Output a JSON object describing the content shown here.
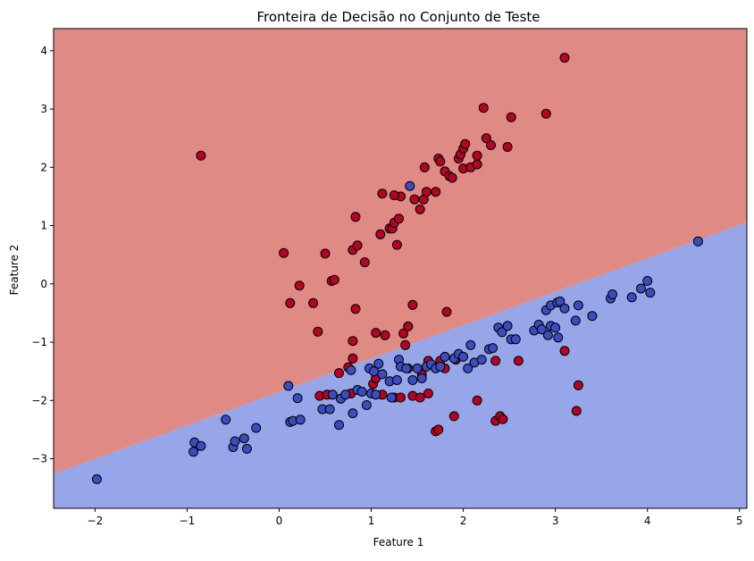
{
  "chart_data": {
    "type": "scatter",
    "title": "Fronteira de Decisão no Conjunto de Teste",
    "xlabel": "Feature 1",
    "ylabel": "Feature 2",
    "xlim": [
      -2.45,
      5.08
    ],
    "ylim": [
      -3.85,
      4.38
    ],
    "xticks": [
      -2,
      -1,
      0,
      1,
      2,
      3,
      4,
      5
    ],
    "yticks": [
      -3,
      -2,
      -1,
      0,
      1,
      2,
      3,
      4
    ],
    "xtick_labels": [
      "−2",
      "−1",
      "0",
      "1",
      "2",
      "3",
      "4",
      "5"
    ],
    "ytick_labels": [
      "−3",
      "−2",
      "−1",
      "0",
      "1",
      "2",
      "3",
      "4"
    ],
    "grid": false,
    "legend": "none",
    "decision_boundary": {
      "x": [
        -2.45,
        5.08
      ],
      "y": [
        -3.26,
        1.06
      ],
      "region_above_color": "#e08a85",
      "region_below_color": "#97a6e8"
    },
    "series": [
      {
        "color": "#b40426",
        "points": [
          [
            -0.85,
            2.2
          ],
          [
            0.05,
            0.53
          ],
          [
            0.12,
            -0.33
          ],
          [
            0.22,
            -0.03
          ],
          [
            0.37,
            -0.33
          ],
          [
            0.42,
            -0.82
          ],
          [
            0.5,
            0.52
          ],
          [
            0.57,
            0.05
          ],
          [
            0.6,
            0.07
          ],
          [
            0.8,
            0.58
          ],
          [
            0.83,
            1.15
          ],
          [
            0.85,
            0.66
          ],
          [
            0.93,
            0.37
          ],
          [
            0.83,
            -0.43
          ],
          [
            0.8,
            -0.98
          ],
          [
            1.05,
            -0.84
          ],
          [
            1.1,
            0.85
          ],
          [
            1.12,
            1.55
          ],
          [
            1.15,
            -0.88
          ],
          [
            1.2,
            0.95
          ],
          [
            1.23,
            0.95
          ],
          [
            1.25,
            1.05
          ],
          [
            1.28,
            0.67
          ],
          [
            1.3,
            1.12
          ],
          [
            1.32,
            1.5
          ],
          [
            1.25,
            1.52
          ],
          [
            1.35,
            -0.85
          ],
          [
            1.4,
            -0.73
          ],
          [
            1.45,
            -0.36
          ],
          [
            1.47,
            1.45
          ],
          [
            1.53,
            1.28
          ],
          [
            1.57,
            1.45
          ],
          [
            1.6,
            1.58
          ],
          [
            1.58,
            2.0
          ],
          [
            1.7,
            1.58
          ],
          [
            1.73,
            2.15
          ],
          [
            1.75,
            2.1
          ],
          [
            1.8,
            1.93
          ],
          [
            1.85,
            1.85
          ],
          [
            1.88,
            1.82
          ],
          [
            1.95,
            2.15
          ],
          [
            1.97,
            2.22
          ],
          [
            2.0,
            2.32
          ],
          [
            2.02,
            2.4
          ],
          [
            2.0,
            1.98
          ],
          [
            2.08,
            2.0
          ],
          [
            2.15,
            2.05
          ],
          [
            2.15,
            2.2
          ],
          [
            2.22,
            3.02
          ],
          [
            2.25,
            2.5
          ],
          [
            2.3,
            2.38
          ],
          [
            2.48,
            2.35
          ],
          [
            2.52,
            2.86
          ],
          [
            2.9,
            2.92
          ],
          [
            3.1,
            3.88
          ],
          [
            1.82,
            -0.48
          ],
          [
            1.37,
            -1.05
          ],
          [
            0.8,
            -1.28
          ],
          [
            0.75,
            -1.43
          ],
          [
            0.65,
            -1.53
          ],
          [
            0.44,
            -1.92
          ],
          [
            0.52,
            -1.9
          ],
          [
            0.78,
            -1.88
          ],
          [
            1.02,
            -1.72
          ],
          [
            1.05,
            -1.62
          ],
          [
            1.12,
            -1.9
          ],
          [
            1.25,
            -1.95
          ],
          [
            1.32,
            -1.95
          ],
          [
            1.45,
            -1.92
          ],
          [
            1.53,
            -1.95
          ],
          [
            1.62,
            -1.88
          ],
          [
            1.4,
            -1.45
          ],
          [
            1.55,
            -1.55
          ],
          [
            1.62,
            -1.32
          ],
          [
            1.75,
            -1.32
          ],
          [
            1.8,
            -1.45
          ],
          [
            1.92,
            -1.3
          ],
          [
            2.35,
            -1.32
          ],
          [
            2.6,
            -1.32
          ],
          [
            1.9,
            -2.27
          ],
          [
            1.7,
            -2.53
          ],
          [
            1.73,
            -2.5
          ],
          [
            2.15,
            -2.0
          ],
          [
            2.35,
            -2.35
          ],
          [
            2.4,
            -2.27
          ],
          [
            2.43,
            -2.32
          ],
          [
            3.1,
            -1.15
          ],
          [
            3.25,
            -1.74
          ],
          [
            3.23,
            -2.18
          ]
        ]
      },
      {
        "color": "#3b4cc0",
        "points": [
          [
            -1.98,
            -3.35
          ],
          [
            -0.92,
            -2.72
          ],
          [
            -0.93,
            -2.88
          ],
          [
            -0.85,
            -2.78
          ],
          [
            -0.58,
            -2.33
          ],
          [
            -0.5,
            -2.8
          ],
          [
            -0.48,
            -2.7
          ],
          [
            -0.38,
            -2.65
          ],
          [
            -0.35,
            -2.83
          ],
          [
            -0.25,
            -2.47
          ],
          [
            0.1,
            -1.75
          ],
          [
            0.12,
            -2.37
          ],
          [
            0.15,
            -2.35
          ],
          [
            0.2,
            -1.96
          ],
          [
            0.23,
            -2.33
          ],
          [
            0.47,
            -2.15
          ],
          [
            0.55,
            -2.15
          ],
          [
            0.58,
            -1.9
          ],
          [
            0.65,
            -2.42
          ],
          [
            0.67,
            -1.97
          ],
          [
            0.72,
            -1.9
          ],
          [
            0.78,
            -1.48
          ],
          [
            0.8,
            -2.22
          ],
          [
            0.85,
            -1.82
          ],
          [
            0.9,
            -1.85
          ],
          [
            0.95,
            -2.08
          ],
          [
            0.98,
            -1.45
          ],
          [
            1.0,
            -1.88
          ],
          [
            1.03,
            -1.5
          ],
          [
            1.05,
            -1.9
          ],
          [
            1.08,
            -1.37
          ],
          [
            1.12,
            -1.55
          ],
          [
            1.2,
            -1.67
          ],
          [
            1.22,
            -1.95
          ],
          [
            1.28,
            -1.65
          ],
          [
            1.3,
            -1.3
          ],
          [
            1.32,
            -1.42
          ],
          [
            1.38,
            -1.45
          ],
          [
            1.42,
            1.68
          ],
          [
            1.45,
            -1.65
          ],
          [
            1.5,
            -1.45
          ],
          [
            1.55,
            -1.62
          ],
          [
            1.6,
            -1.42
          ],
          [
            1.65,
            -1.38
          ],
          [
            1.7,
            -1.45
          ],
          [
            1.75,
            -1.42
          ],
          [
            1.8,
            -1.25
          ],
          [
            1.9,
            -1.28
          ],
          [
            1.95,
            -1.2
          ],
          [
            2.0,
            -1.25
          ],
          [
            2.05,
            -1.45
          ],
          [
            2.08,
            -1.05
          ],
          [
            2.12,
            -1.35
          ],
          [
            2.2,
            -1.3
          ],
          [
            2.28,
            -1.12
          ],
          [
            2.32,
            -1.1
          ],
          [
            2.38,
            -0.75
          ],
          [
            2.42,
            -0.83
          ],
          [
            2.48,
            -0.72
          ],
          [
            2.52,
            -0.95
          ],
          [
            2.57,
            -0.95
          ],
          [
            2.77,
            -0.8
          ],
          [
            2.82,
            -0.7
          ],
          [
            2.85,
            -0.78
          ],
          [
            2.9,
            -0.45
          ],
          [
            2.92,
            -0.88
          ],
          [
            2.95,
            -0.72
          ],
          [
            2.95,
            -0.37
          ],
          [
            3.0,
            -0.75
          ],
          [
            3.02,
            -0.32
          ],
          [
            3.05,
            -0.3
          ],
          [
            3.03,
            -0.92
          ],
          [
            3.1,
            -0.42
          ],
          [
            3.22,
            -0.63
          ],
          [
            3.25,
            -0.37
          ],
          [
            3.4,
            -0.55
          ],
          [
            3.6,
            -0.25
          ],
          [
            3.62,
            -0.18
          ],
          [
            3.83,
            -0.23
          ],
          [
            3.93,
            -0.08
          ],
          [
            4.0,
            0.05
          ],
          [
            4.03,
            -0.15
          ],
          [
            4.55,
            0.73
          ]
        ]
      }
    ]
  }
}
